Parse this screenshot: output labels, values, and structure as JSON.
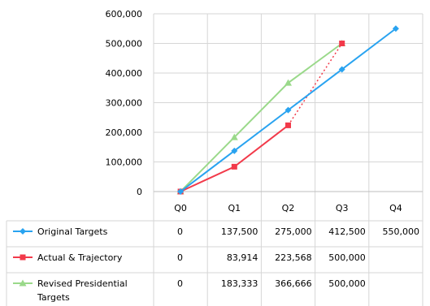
{
  "chart_data": {
    "type": "line",
    "categories": [
      "Q0",
      "Q1",
      "Q2",
      "Q3",
      "Q4"
    ],
    "ylim": [
      0,
      600000
    ],
    "yticks": [
      0,
      100000,
      200000,
      300000,
      400000,
      500000,
      600000
    ],
    "ytick_labels": [
      "0",
      "100,000",
      "200,000",
      "300,000",
      "400,000",
      "500,000",
      "600,000"
    ],
    "grid": true,
    "legend": "data-table-below",
    "series": [
      {
        "name": "Original Targets",
        "color": "#29a3f0",
        "marker": "diamond",
        "values": [
          0,
          137500,
          275000,
          412500,
          550000
        ],
        "value_labels": [
          "0",
          "137,500",
          "275,000",
          "412,500",
          "550,000"
        ]
      },
      {
        "name": "Actual & Trajectory",
        "color": "#f23a4a",
        "marker": "square",
        "values": [
          0,
          83914,
          223568,
          null,
          null
        ],
        "trajectory": {
          "from_index": 2,
          "to_index": 3,
          "to_value": 500000,
          "style": "dotted"
        },
        "value_labels": [
          "0",
          "83,914",
          "223,568",
          "500,000",
          ""
        ]
      },
      {
        "name": "Revised Presidential Targets",
        "color": "#9ad98a",
        "marker": "triangle",
        "values": [
          0,
          183333,
          366666,
          500000,
          null
        ],
        "value_labels": [
          "0",
          "183,333",
          "366,666",
          "500,000",
          ""
        ]
      }
    ]
  }
}
